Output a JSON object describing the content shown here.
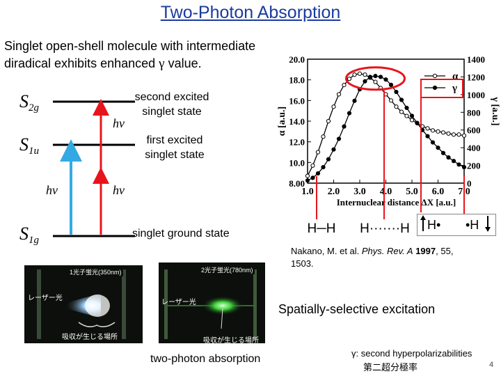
{
  "slide": {
    "title": "Two-Photon Absorption",
    "intro_line1": "Singlet open-shell molecule with intermediate",
    "intro_line2_text": "diradical exhibits enhanced ",
    "intro_gamma": "γ",
    "intro_line2_end": " value.",
    "page_number": "4"
  },
  "levels": {
    "s2_label": "S",
    "s2_sub": "2g",
    "s1_label": "S",
    "s1_sub": "1u",
    "s0_label": "S",
    "s0_sub": "1g",
    "s2_desc_line1": "second excited",
    "s2_desc_line2": "singlet state",
    "s1_desc_line1": "first excited",
    "s1_desc_line2": "singlet state",
    "s0_desc": "singlet ground state",
    "hv_upper": "hν",
    "hv_left": "hν",
    "hv_lower": "hν",
    "color_one_photon": "#33a9e4",
    "color_two_photon": "#e8141b"
  },
  "chart_data": {
    "type": "line",
    "xlabel": "Internuclear distance ΔX [a.u.]",
    "ylabel_left": "α [a.u.]",
    "ylabel_right": "γ [a.u.]",
    "x_ticks": [
      "1.0",
      "2.0",
      "3.0",
      "4.0",
      "5.0",
      "6.0",
      "7.0"
    ],
    "y_left_ticks": [
      "8.00",
      "10.0",
      "12.0",
      "14.0",
      "16.0",
      "18.0",
      "20.0"
    ],
    "y_right_ticks": [
      "0",
      "200",
      "400",
      "600",
      "800",
      "1000",
      "1200",
      "1400"
    ],
    "xlim": [
      1.0,
      7.0
    ],
    "ylim_left": [
      8.0,
      20.0
    ],
    "ylim_right": [
      0,
      1400
    ],
    "legend": [
      "α",
      "γ"
    ],
    "legend_position": "top-right",
    "series": [
      {
        "name": "α",
        "marker": "open-circle",
        "axis": "left",
        "x": [
          1.0,
          1.2,
          1.4,
          1.6,
          1.8,
          2.0,
          2.2,
          2.4,
          2.6,
          2.8,
          3.0,
          3.2,
          3.4,
          3.6,
          3.8,
          4.0,
          4.2,
          4.4,
          4.6,
          4.8,
          5.0,
          5.2,
          5.4,
          5.6,
          5.8,
          6.0,
          6.2,
          6.4,
          6.6,
          6.8,
          7.0
        ],
        "y": [
          8.7,
          9.7,
          11.0,
          12.5,
          14.0,
          15.4,
          16.6,
          17.5,
          18.1,
          18.5,
          18.6,
          18.5,
          18.2,
          17.8,
          17.2,
          16.6,
          16.0,
          15.4,
          14.9,
          14.5,
          14.1,
          13.8,
          13.5,
          13.3,
          13.1,
          13.0,
          12.9,
          12.8,
          12.7,
          12.7,
          12.6
        ]
      },
      {
        "name": "γ",
        "marker": "filled-circle",
        "axis": "right",
        "x": [
          1.0,
          1.2,
          1.4,
          1.6,
          1.8,
          2.0,
          2.2,
          2.4,
          2.6,
          2.8,
          3.0,
          3.2,
          3.4,
          3.6,
          3.8,
          4.0,
          4.2,
          4.4,
          4.6,
          4.8,
          5.0,
          5.2,
          5.4,
          5.6,
          5.8,
          6.0,
          6.2,
          6.4,
          6.6,
          6.8,
          7.0
        ],
        "y": [
          30,
          60,
          110,
          180,
          270,
          380,
          500,
          640,
          790,
          930,
          1060,
          1150,
          1200,
          1210,
          1200,
          1170,
          1110,
          1030,
          940,
          850,
          760,
          680,
          600,
          530,
          460,
          400,
          340,
          290,
          250,
          210,
          180
        ]
      }
    ]
  },
  "structures": {
    "bond_single": "H─H",
    "bond_stretched": "H·······H",
    "radical_left": "H•",
    "radical_right": "•H"
  },
  "reference": {
    "authors": "Nakano, M. et al. ",
    "journal": "Phys. Rev. A",
    "year": " 1997",
    "volume_pages": ", 55,",
    "pages": "1503."
  },
  "photos": {
    "left_caption": "1光子蛍光(350nm)",
    "left_laser": "レーザー光",
    "left_absorb": "吸収が生じる場所",
    "right_caption": "2光子蛍光(780nm)",
    "right_laser": "レーザー光",
    "right_absorb": "吸収が生じる場所",
    "caption_two_photon": "two-photon absorption"
  },
  "notes": {
    "spatial": "Spatially-selective excitation",
    "gamma_def": "γ: second hyperpolarizabilities",
    "gamma_jp": "第二超分極率"
  }
}
